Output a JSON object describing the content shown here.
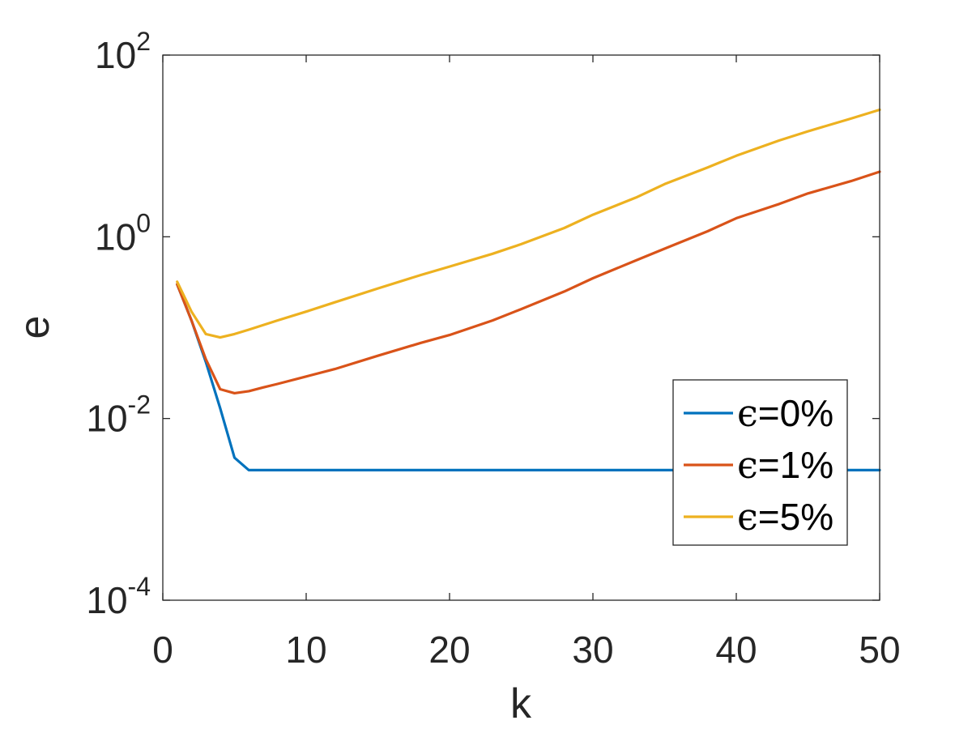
{
  "chart_data": {
    "type": "line",
    "xlabel": "k",
    "ylabel": "e",
    "xlim": [
      0,
      50
    ],
    "ylim": [
      0.0001,
      100
    ],
    "yscale": "log",
    "xticks": [
      "0",
      "10",
      "20",
      "30",
      "40",
      "50"
    ],
    "yticks": [
      {
        "base": "10",
        "exp": "-4",
        "value": 0.0001
      },
      {
        "base": "10",
        "exp": "-2",
        "value": 0.01
      },
      {
        "base": "10",
        "exp": "0",
        "value": 1
      },
      {
        "base": "10",
        "exp": "2",
        "value": 100
      }
    ],
    "grid": false,
    "legend_position": "lower-right",
    "series": [
      {
        "name": "ϵ=0%",
        "label_symbol": "ϵ",
        "label_text": "=0%",
        "color": "#0072BD",
        "x": [
          1,
          2,
          3,
          4,
          5,
          6,
          8,
          10,
          15,
          20,
          25,
          30,
          35,
          40,
          45,
          50
        ],
        "y": [
          0.3,
          0.12,
          0.042,
          0.013,
          0.0037,
          0.0027,
          0.0027,
          0.0027,
          0.0027,
          0.0027,
          0.0027,
          0.0027,
          0.0027,
          0.0027,
          0.0027,
          0.0027
        ]
      },
      {
        "name": "ϵ=1%",
        "label_symbol": "ϵ",
        "label_text": "=1%",
        "color": "#D95319",
        "x": [
          1,
          2,
          3,
          4,
          5,
          6,
          7,
          8,
          10,
          12,
          15,
          18,
          20,
          23,
          25,
          28,
          30,
          33,
          35,
          38,
          40,
          43,
          45,
          48,
          50
        ],
        "y": [
          0.3,
          0.12,
          0.045,
          0.021,
          0.019,
          0.02,
          0.022,
          0.024,
          0.029,
          0.035,
          0.049,
          0.068,
          0.083,
          0.12,
          0.16,
          0.25,
          0.35,
          0.55,
          0.74,
          1.15,
          1.6,
          2.3,
          3.0,
          4.1,
          5.2
        ]
      },
      {
        "name": "ϵ=5%",
        "label_symbol": "ϵ",
        "label_text": "=5%",
        "color": "#EDB120",
        "x": [
          1,
          2,
          3,
          4,
          5,
          6,
          8,
          10,
          12,
          15,
          18,
          20,
          23,
          25,
          28,
          30,
          33,
          35,
          38,
          40,
          43,
          45,
          48,
          50
        ],
        "y": [
          0.32,
          0.15,
          0.085,
          0.078,
          0.085,
          0.095,
          0.12,
          0.15,
          0.19,
          0.27,
          0.38,
          0.47,
          0.65,
          0.83,
          1.25,
          1.75,
          2.7,
          3.8,
          5.8,
          7.8,
          11.5,
          14.5,
          20,
          25
        ]
      }
    ]
  }
}
